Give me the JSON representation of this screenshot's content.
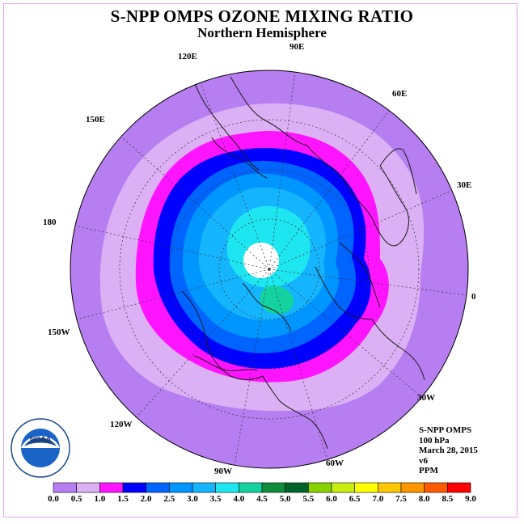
{
  "title": "S-NPP OMPS OZONE MIXING RATIO",
  "subtitle": "Northern Hemisphere",
  "longitude_labels": [
    "90E",
    "60E",
    "30E",
    "0",
    "30W",
    "60W",
    "90W",
    "120W",
    "150W",
    "180",
    "150E",
    "120E"
  ],
  "info": {
    "instrument": "S-NPP OMPS",
    "level": "100 hPa",
    "date": "March 28, 2015",
    "version": "v6",
    "units": "PPM"
  },
  "logo": {
    "text": "NOAA",
    "ring_text": "NATIONAL OCEANIC AND ATMOSPHERIC ADMINISTRATION • U.S. DEPARTMENT OF COMMERCE"
  },
  "colorbar": {
    "ticks": [
      "0.0",
      "0.5",
      "1.0",
      "1.5",
      "2.0",
      "2.5",
      "3.0",
      "3.5",
      "4.0",
      "4.5",
      "5.0",
      "5.5",
      "6.0",
      "6.5",
      "7.0",
      "7.5",
      "8.0",
      "8.5",
      "9.0"
    ],
    "colors": [
      "#b67ef0",
      "#dcb0f4",
      "#ff14ff",
      "#0000ff",
      "#0064ff",
      "#0096ff",
      "#14b4ff",
      "#1ee6f0",
      "#14d2a0",
      "#0f8c3c",
      "#006428",
      "#88d200",
      "#c8ee10",
      "#ffff00",
      "#ffc800",
      "#ff9600",
      "#ff5a00",
      "#ff0000",
      "#8c5a3c"
    ]
  }
}
